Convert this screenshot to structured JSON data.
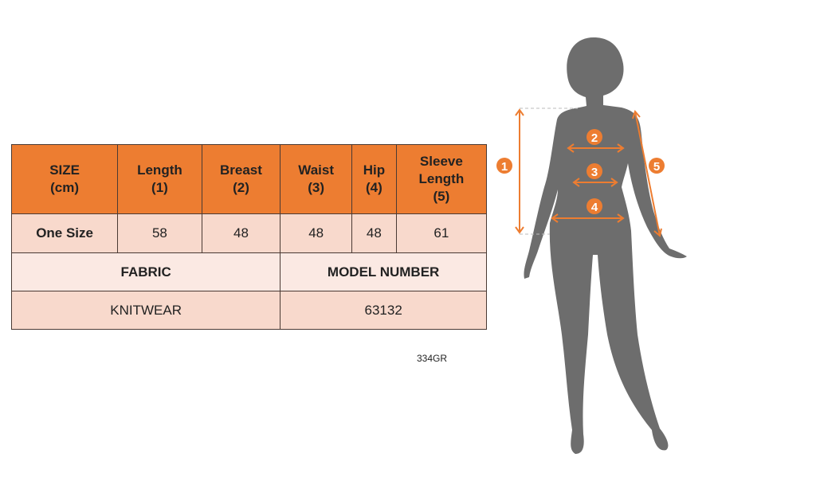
{
  "table": {
    "headers": [
      [
        "SIZE",
        "(cm)"
      ],
      [
        "Length",
        "(1)"
      ],
      [
        "Breast",
        "(2)"
      ],
      [
        "Waist",
        "(3)"
      ],
      [
        "Hip",
        "(4)"
      ],
      [
        "Sleeve",
        "Length",
        "(5)"
      ]
    ],
    "size_row": {
      "label": "One Size",
      "values": [
        "58",
        "48",
        "48",
        "48",
        "61"
      ]
    },
    "fabric_label": "FABRIC",
    "model_label": "MODEL NUMBER",
    "fabric_value": "KNITWEAR",
    "model_value": "63132"
  },
  "product_code": "334GR",
  "figure": {
    "markers": [
      "1",
      "2",
      "3",
      "4",
      "5"
    ],
    "accent": "#ED7D31",
    "silhouette": "#6d6d6d"
  }
}
